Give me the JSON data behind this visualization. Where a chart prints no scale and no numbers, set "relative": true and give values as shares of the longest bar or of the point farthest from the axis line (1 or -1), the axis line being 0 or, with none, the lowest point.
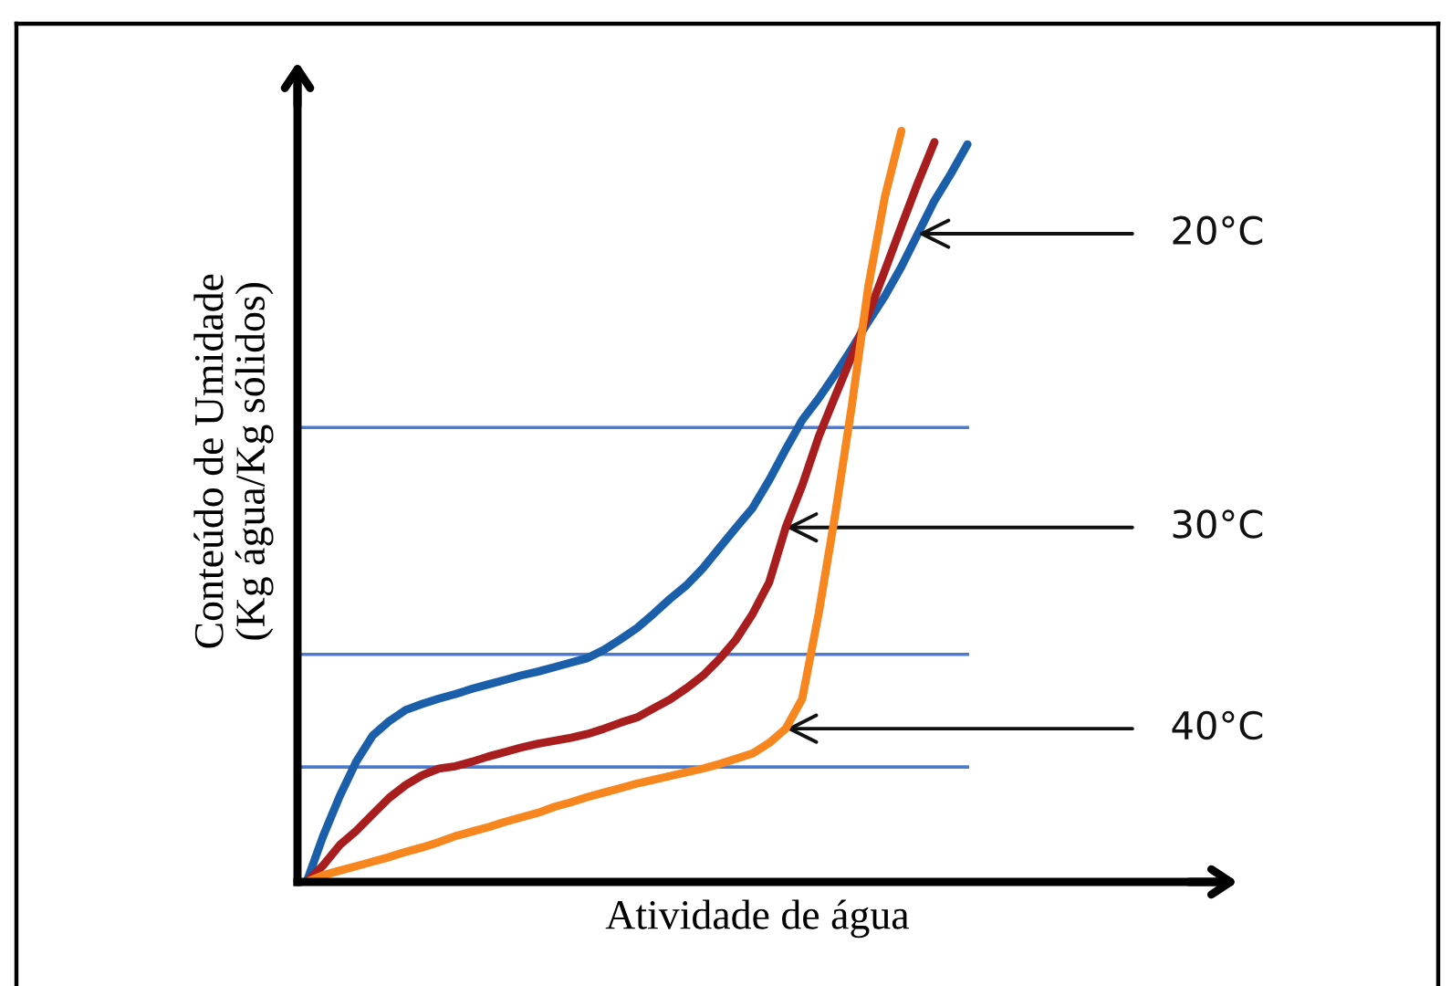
{
  "chart_data": {
    "type": "line",
    "relative": true,
    "xlabel": "Atividade de água",
    "ylabel": "Conteúdo de Umidade\n(Kg água/Kg sólidos)",
    "categories": [
      null,
      null,
      null,
      null,
      null,
      null,
      null,
      null,
      null,
      null,
      null,
      null,
      null,
      null,
      null,
      null,
      null,
      null,
      null,
      null,
      null,
      null,
      null,
      null,
      null,
      null,
      null,
      null,
      null,
      null,
      null,
      null,
      null,
      null,
      null,
      null,
      null,
      null,
      null,
      null,
      null
    ],
    "series": [
      {
        "name": "20°C",
        "color": "#1b5faa",
        "values": [
          0,
          0.061,
          0.114,
          0.16,
          0.195,
          0.214,
          0.229,
          0.237,
          0.244,
          0.25,
          0.257,
          0.263,
          0.269,
          0.275,
          0.28,
          0.286,
          0.292,
          0.298,
          0.309,
          0.323,
          0.338,
          0.357,
          0.377,
          0.395,
          0.418,
          0.445,
          0.472,
          0.498,
          0.535,
          0.576,
          0.615,
          0.644,
          0.676,
          0.71,
          0.746,
          0.78,
          0.819,
          0.863,
          0.907,
          0.943,
          0.982
        ]
      },
      {
        "name": "30°C",
        "color": "#a81e1e",
        "values": [
          0,
          0.022,
          0.049,
          0.068,
          0.09,
          0.112,
          0.129,
          0.142,
          0.151,
          0.154,
          0.16,
          0.167,
          0.173,
          0.179,
          0.184,
          0.188,
          0.192,
          0.197,
          0.204,
          0.212,
          0.219,
          0.231,
          0.243,
          0.258,
          0.275,
          0.297,
          0.323,
          0.357,
          0.399,
          0.472,
          0.528,
          0.593,
          0.647,
          0.7,
          0.756,
          0.814,
          0.873,
          0.931,
          0.985,
          null,
          null
        ]
      },
      {
        "name": "40°C",
        "color": "#f7861f",
        "values": [
          0,
          0.009,
          0.015,
          0.021,
          0.027,
          0.033,
          0.04,
          0.046,
          0.053,
          0.061,
          0.067,
          0.073,
          0.08,
          0.086,
          0.092,
          0.1,
          0.106,
          0.113,
          0.119,
          0.125,
          0.131,
          0.136,
          0.141,
          0.146,
          0.151,
          0.157,
          0.164,
          0.171,
          0.185,
          0.204,
          0.244,
          0.358,
          0.49,
          0.634,
          0.793,
          0.912,
          1.0,
          null,
          null,
          null,
          null
        ]
      }
    ],
    "ref_lines": [
      {
        "axis": "y",
        "value": 0.605,
        "color": "#4a7bd0"
      },
      {
        "axis": "y",
        "value": 0.303,
        "color": "#4a7bd0"
      },
      {
        "axis": "y",
        "value": 0.153,
        "color": "#4a7bd0"
      }
    ]
  }
}
